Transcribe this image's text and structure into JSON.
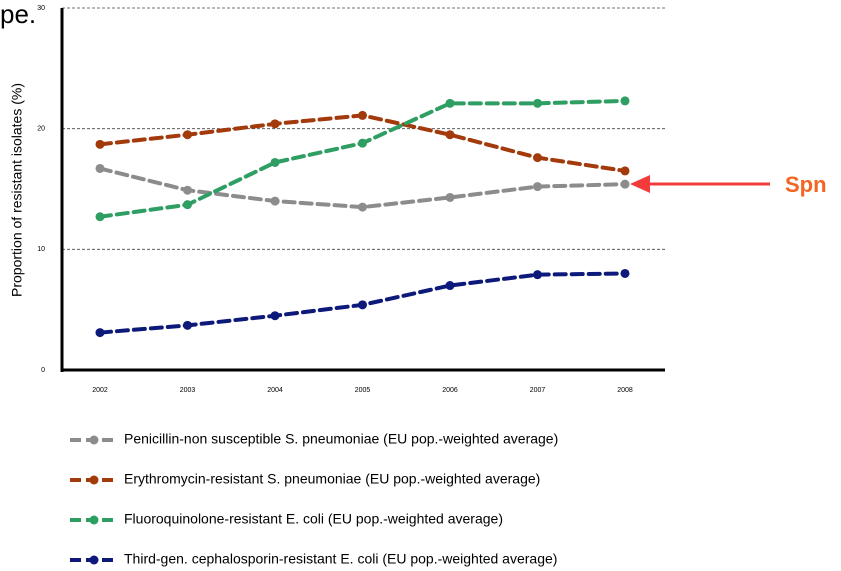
{
  "chart_data": {
    "type": "line",
    "title": "pe.",
    "y_label": "Proportion of resistant isolates (%)",
    "annotation": "Spn",
    "categories": [
      "2002",
      "2003",
      "2004",
      "2005",
      "2006",
      "2007",
      "2008"
    ],
    "series": [
      {
        "name": "Penicillin-non susceptible S. pneumoniae (EU pop.-weighted average)",
        "color": "#8c8c8c",
        "values": [
          16.7,
          14.9,
          14.0,
          13.5,
          14.3,
          15.2,
          15.4
        ]
      },
      {
        "name": "Erythromycin-resistant S. pneumoniae (EU pop.-weighted average)",
        "color": "#a33a0c",
        "values": [
          18.7,
          19.5,
          20.4,
          21.1,
          19.5,
          17.6,
          16.5
        ]
      },
      {
        "name": "Fluoroquinolone-resistant E. coli (EU pop.-weighted average)",
        "color": "#2e9e63",
        "values": [
          12.7,
          13.7,
          17.2,
          18.8,
          22.1,
          22.1,
          22.3
        ]
      },
      {
        "name": "Third-gen. cephalosporin-resistant E. coli (EU pop.-weighted average)",
        "color": "#0d1a7a",
        "values": [
          3.1,
          3.7,
          4.5,
          5.4,
          7.0,
          7.9,
          8.0
        ]
      }
    ],
    "ylim": [
      0,
      30
    ],
    "yticks": [
      0,
      10,
      20,
      30
    ],
    "grid": true
  }
}
